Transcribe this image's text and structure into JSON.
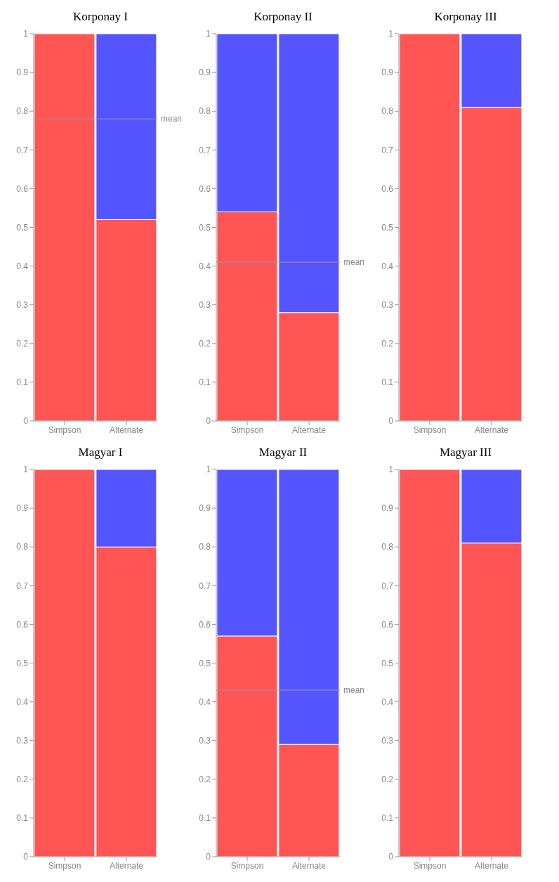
{
  "chart_data": [
    {
      "type": "bar",
      "title": "Korponay I",
      "categories": [
        "Simpson",
        "Alternate"
      ],
      "stacked": true,
      "ylim": [
        0,
        1
      ],
      "yticks": [
        0,
        0.1,
        0.2,
        0.3,
        0.4,
        0.5,
        0.6,
        0.7,
        0.8,
        0.9,
        1
      ],
      "series": [
        {
          "color": "#ff5555",
          "values": [
            1,
            0.52
          ]
        },
        {
          "color": "#5555ff",
          "values": [
            0,
            0.48
          ]
        }
      ],
      "ref_lines": [
        {
          "axis": "y",
          "value": 0.78,
          "label": "mean",
          "color": "#999999"
        }
      ]
    },
    {
      "type": "bar",
      "title": "Korponay II",
      "categories": [
        "Simpson",
        "Alternate"
      ],
      "stacked": true,
      "ylim": [
        0,
        1
      ],
      "yticks": [
        0,
        0.1,
        0.2,
        0.3,
        0.4,
        0.5,
        0.6,
        0.7,
        0.8,
        0.9,
        1
      ],
      "series": [
        {
          "color": "#ff5555",
          "values": [
            0.54,
            0.28
          ]
        },
        {
          "color": "#5555ff",
          "values": [
            0.46,
            0.72
          ]
        }
      ],
      "ref_lines": [
        {
          "axis": "y",
          "value": 0.41,
          "label": "mean",
          "color": "#999999"
        }
      ]
    },
    {
      "type": "bar",
      "title": "Korponay III",
      "categories": [
        "Simpson",
        "Alternate"
      ],
      "stacked": true,
      "ylim": [
        0,
        1
      ],
      "yticks": [
        0,
        0.1,
        0.2,
        0.3,
        0.4,
        0.5,
        0.6,
        0.7,
        0.8,
        0.9,
        1
      ],
      "series": [
        {
          "color": "#ff5555",
          "values": [
            1,
            0.81
          ]
        },
        {
          "color": "#5555ff",
          "values": [
            0,
            0.19
          ]
        }
      ]
    },
    {
      "type": "bar",
      "title": "Magyar I",
      "categories": [
        "Simpson",
        "Alternate"
      ],
      "stacked": true,
      "ylim": [
        0,
        1
      ],
      "yticks": [
        0,
        0.1,
        0.2,
        0.3,
        0.4,
        0.5,
        0.6,
        0.7,
        0.8,
        0.9,
        1
      ],
      "series": [
        {
          "color": "#ff5555",
          "values": [
            1,
            0.8
          ]
        },
        {
          "color": "#5555ff",
          "values": [
            0,
            0.2
          ]
        }
      ]
    },
    {
      "type": "bar",
      "title": "Magyar II",
      "categories": [
        "Simpson",
        "Alternate"
      ],
      "stacked": true,
      "ylim": [
        0,
        1
      ],
      "yticks": [
        0,
        0.1,
        0.2,
        0.3,
        0.4,
        0.5,
        0.6,
        0.7,
        0.8,
        0.9,
        1
      ],
      "series": [
        {
          "color": "#ff5555",
          "values": [
            0.57,
            0.29
          ]
        },
        {
          "color": "#5555ff",
          "values": [
            0.43,
            0.71
          ]
        }
      ],
      "ref_lines": [
        {
          "axis": "y",
          "value": 0.43,
          "label": "mean",
          "color": "#999999"
        }
      ]
    },
    {
      "type": "bar",
      "title": "Magyar III",
      "categories": [
        "Simpson",
        "Alternate"
      ],
      "stacked": true,
      "ylim": [
        0,
        1
      ],
      "yticks": [
        0,
        0.1,
        0.2,
        0.3,
        0.4,
        0.5,
        0.6,
        0.7,
        0.8,
        0.9,
        1
      ],
      "series": [
        {
          "color": "#ff5555",
          "values": [
            1,
            0.81
          ]
        },
        {
          "color": "#5555ff",
          "values": [
            0,
            0.19
          ]
        }
      ]
    }
  ]
}
